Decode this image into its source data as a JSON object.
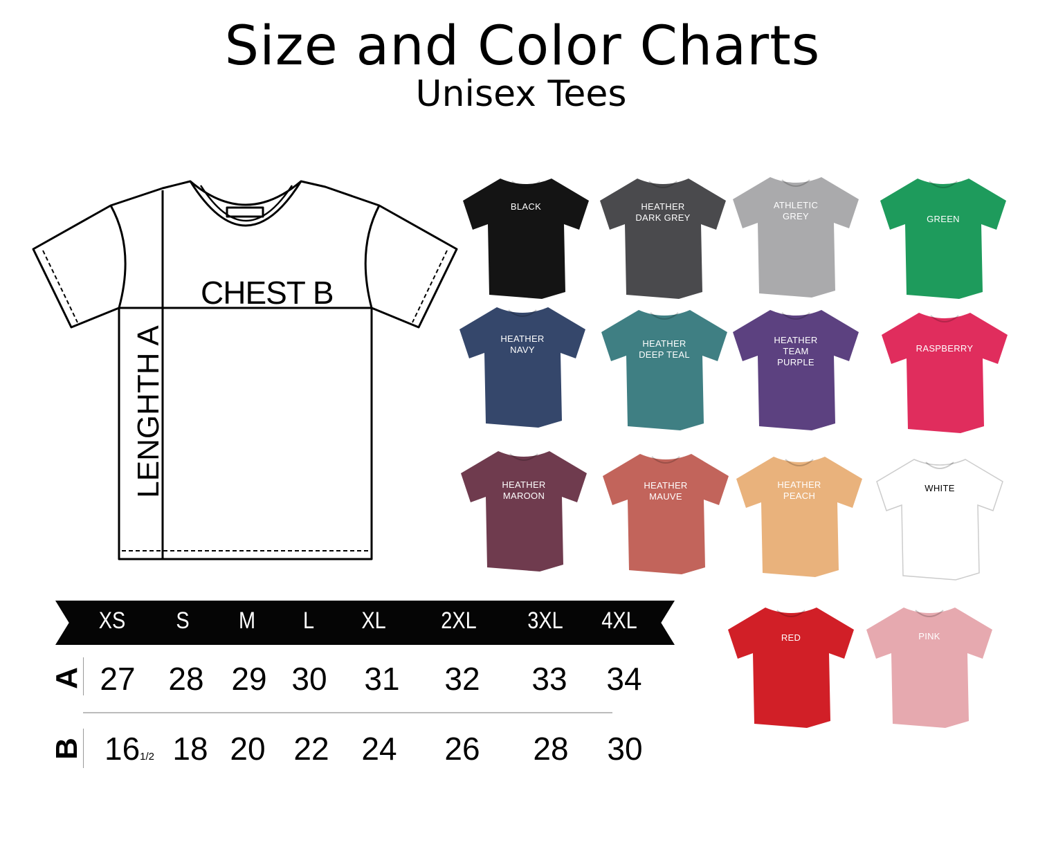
{
  "header": {
    "title": "Size and Color Charts",
    "subtitle": "Unisex Tees"
  },
  "diagram": {
    "chest_label": "CHEST B",
    "length_label": "LENGHTH A"
  },
  "size_table": {
    "sizes": [
      "XS",
      "S",
      "M",
      "L",
      "XL",
      "2XL",
      "3XL",
      "4XL"
    ],
    "rows": [
      {
        "label": "A",
        "values": [
          "27",
          "28",
          "29",
          "30",
          "31",
          "32",
          "33",
          "34"
        ]
      },
      {
        "label": "B",
        "values": [
          "16",
          "18",
          "20",
          "22",
          "24",
          "26",
          "28",
          "30"
        ],
        "first_fraction": "1/2"
      }
    ]
  },
  "colors": [
    {
      "name": "BLACK",
      "hex": "#141414",
      "text": "#ffffff"
    },
    {
      "name": "HEATHER\nDARK GREY",
      "hex": "#4a4a4d",
      "text": "#ffffff"
    },
    {
      "name": "ATHLETIC\nGREY",
      "hex": "#aaaaac",
      "text": "#ffffff"
    },
    {
      "name": "GREEN",
      "hex": "#1e9b5c",
      "text": "#ffffff"
    },
    {
      "name": "HEATHER\nNAVY",
      "hex": "#35476b",
      "text": "#ffffff"
    },
    {
      "name": "HEATHER\nDEEP TEAL",
      "hex": "#3f7f83",
      "text": "#ffffff"
    },
    {
      "name": "HEATHER\nTEAM\nPURPLE",
      "hex": "#5c4180",
      "text": "#ffffff"
    },
    {
      "name": "RASPBERRY",
      "hex": "#e02d5d",
      "text": "#ffffff"
    },
    {
      "name": "HEATHER\nMAROON",
      "hex": "#6f3b4e",
      "text": "#ffffff"
    },
    {
      "name": "HEATHER\nMAUVE",
      "hex": "#c2645b",
      "text": "#ffffff"
    },
    {
      "name": "HEATHER\nPEACH",
      "hex": "#e9b27c",
      "text": "#ffffff"
    },
    {
      "name": "WHITE",
      "hex": "#ffffff",
      "text": "#000000"
    },
    {
      "name": "RED",
      "hex": "#d11f27",
      "text": "#ffffff"
    },
    {
      "name": "PINK",
      "hex": "#e6a9af",
      "text": "#ffffff"
    }
  ]
}
